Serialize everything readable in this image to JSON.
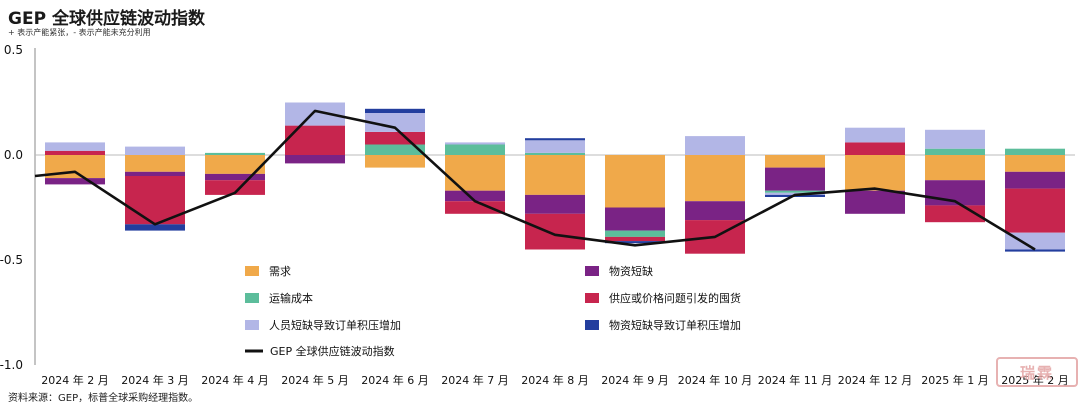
{
  "title": "GEP 全球供应链波动指数",
  "subtitle": "+ 表示产能紧张，- 表示产能未充分利用",
  "source": "资料来源：GEP，标普全球采购经理指数。",
  "stamp": "瑞霖",
  "chart_data": {
    "type": "bar",
    "stacked": true,
    "categories": [
      "2024 年 2 月",
      "2024 年 3 月",
      "2024 年 4 月",
      "2024 年 5 月",
      "2024 年 6 月",
      "2024 年 7 月",
      "2024 年 8 月",
      "2024 年 9 月",
      "2024 年 10 月",
      "2024 年 11 月",
      "2024 年 12 月",
      "2025 年 1 月",
      "2025 年 2 月"
    ],
    "ylim": [
      -1.0,
      0.5
    ],
    "yticks": [
      0.5,
      0.0,
      -0.5,
      -1.0
    ],
    "ytick_labels": [
      "0.5",
      "0.0",
      "-0.5",
      "-1.0"
    ],
    "grid": false,
    "legend_position": "bottom",
    "series": [
      {
        "name": "需求",
        "color": "#f0a94a",
        "values": [
          -0.11,
          -0.08,
          -0.09,
          0.0,
          -0.06,
          -0.17,
          -0.19,
          -0.25,
          -0.22,
          -0.06,
          -0.17,
          -0.12,
          -0.08
        ]
      },
      {
        "name": "物资短缺",
        "color": "#7a2385",
        "values": [
          -0.03,
          -0.02,
          -0.03,
          -0.04,
          0.0,
          -0.05,
          -0.09,
          -0.11,
          -0.09,
          -0.11,
          -0.11,
          -0.12,
          -0.08
        ]
      },
      {
        "name": "运输成本",
        "color": "#5cbd9b",
        "values": [
          0.0,
          0.0,
          0.01,
          0.0,
          0.05,
          0.05,
          0.01,
          -0.03,
          0.0,
          -0.01,
          0.0,
          0.03,
          0.03
        ]
      },
      {
        "name": "供应或价格问题引发的囤货",
        "color": "#c7254e",
        "values": [
          0.02,
          -0.23,
          -0.07,
          0.14,
          0.06,
          -0.06,
          -0.17,
          -0.02,
          -0.16,
          0.0,
          0.06,
          -0.08,
          -0.21
        ]
      },
      {
        "name": "人员短缺导致订单积压增加",
        "color": "#b2b6e6",
        "values": [
          0.04,
          0.04,
          0.0,
          0.11,
          0.09,
          0.01,
          0.06,
          0.0,
          0.09,
          -0.01,
          0.07,
          0.09,
          -0.08
        ]
      },
      {
        "name": "物资短缺导致订单积压增加",
        "color": "#233e9e",
        "values": [
          0.0,
          -0.03,
          0.0,
          0.0,
          0.02,
          0.0,
          0.01,
          -0.01,
          0.0,
          -0.01,
          0.0,
          0.0,
          -0.01
        ]
      }
    ],
    "line": {
      "name": "GEP 全球供应链波动指数",
      "color": "#111111",
      "values": [
        -0.08,
        -0.33,
        -0.18,
        0.21,
        0.13,
        -0.22,
        -0.38,
        -0.43,
        -0.39,
        -0.19,
        -0.16,
        -0.22,
        -0.45
      ]
    }
  }
}
